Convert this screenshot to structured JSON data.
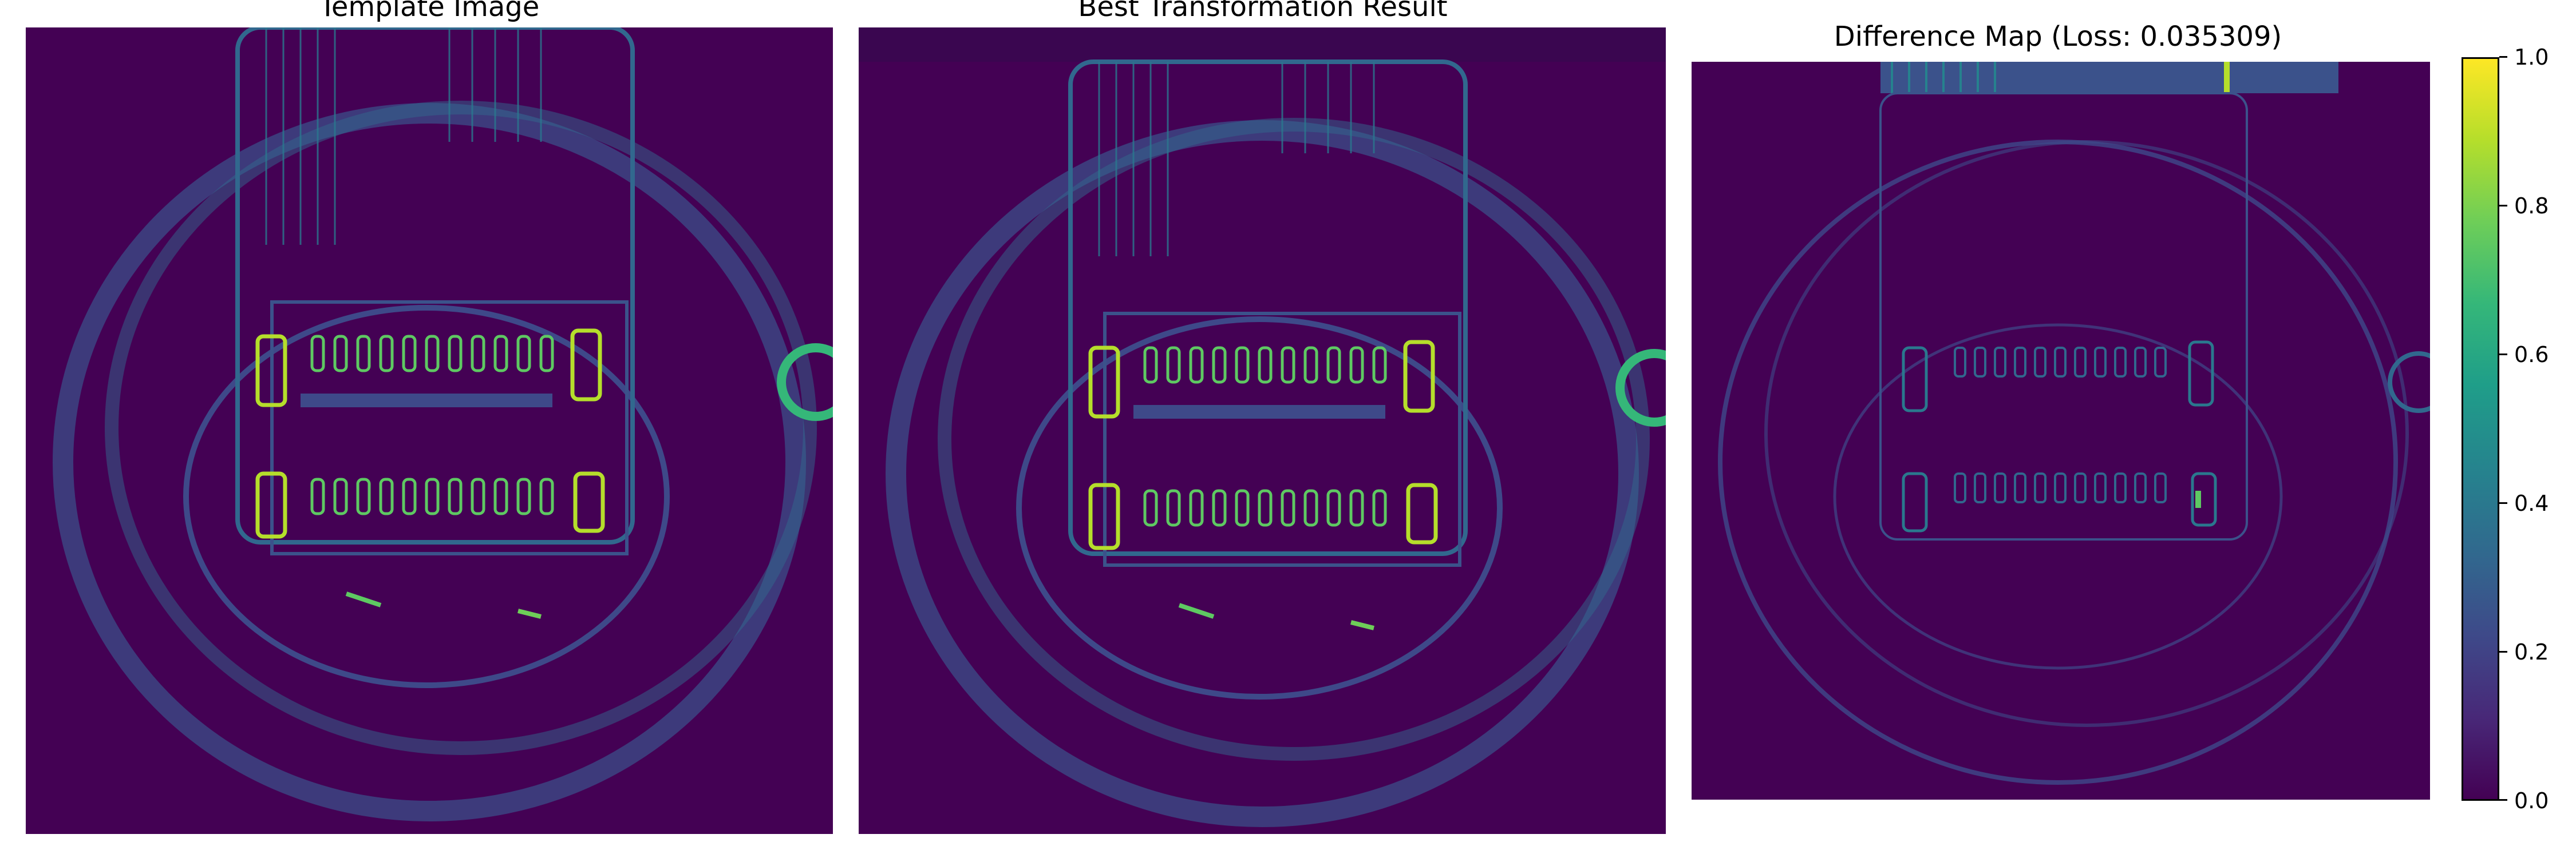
{
  "panels": [
    {
      "title": "Template Image"
    },
    {
      "title": "Best Transformation Result"
    },
    {
      "title": "Difference Map (Loss: 0.035309)"
    }
  ],
  "colorbar": {
    "colormap": "viridis",
    "ticks": [
      "0.0",
      "0.2",
      "0.4",
      "0.6",
      "0.8",
      "1.0"
    ]
  },
  "colors": {
    "background": "#440154",
    "low": "#482878",
    "mid": "#26828e",
    "high": "#fde725"
  }
}
